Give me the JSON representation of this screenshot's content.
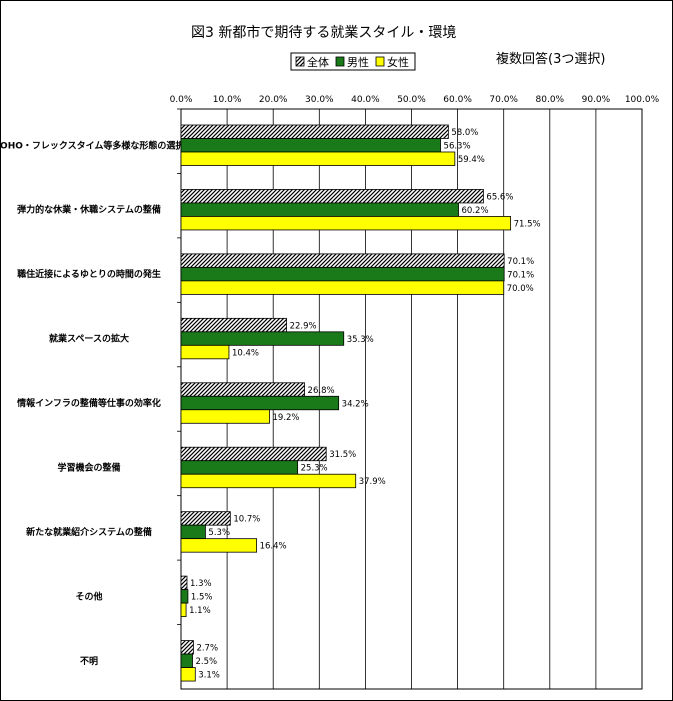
{
  "chart_data": {
    "type": "bar",
    "orientation": "horizontal",
    "title": "図3 新都市で期待する就業スタイル・環境",
    "note": "複数回答(3つ選択)",
    "xlim": [
      0,
      100
    ],
    "x_ticks": [
      "0.0%",
      "10.0%",
      "20.0%",
      "30.0%",
      "40.0%",
      "50.0%",
      "60.0%",
      "70.0%",
      "80.0%",
      "90.0%",
      "100.0%"
    ],
    "legend_position": "top-center",
    "grid": true,
    "categories": [
      "SOHO・フレックスタイム等多様な形態の選択",
      "弾力的な休業・休職システムの整備",
      "職住近接によるゆとりの時間の発生",
      "就業スペースの拡大",
      "情報インフラの整備等仕事の効率化",
      "学習機会の整備",
      "新たな就業紹介システムの整備",
      "その他",
      "不明"
    ],
    "series": [
      {
        "name": "全体",
        "style": "hatched",
        "color": "#ffffff",
        "values": [
          58.0,
          65.6,
          70.1,
          22.9,
          26.8,
          31.5,
          10.7,
          1.3,
          2.7
        ],
        "labels": [
          "58.0%",
          "65.6%",
          "70.1%",
          "22.9%",
          "26.8%",
          "31.5%",
          "10.7%",
          "1.3%",
          "2.7%"
        ]
      },
      {
        "name": "男性",
        "style": "solid",
        "color": "#1a7a1a",
        "values": [
          56.3,
          60.2,
          70.1,
          35.3,
          34.2,
          25.3,
          5.3,
          1.5,
          2.5
        ],
        "labels": [
          "56.3%",
          "60.2%",
          "70.1%",
          "35.3%",
          "34.2%",
          "25.3%",
          "5.3%",
          "1.5%",
          "2.5%"
        ]
      },
      {
        "name": "女性",
        "style": "solid",
        "color": "#ffff00",
        "values": [
          59.4,
          71.5,
          70.0,
          10.4,
          19.2,
          37.9,
          16.4,
          1.1,
          3.1
        ],
        "labels": [
          "59.4%",
          "71.5%",
          "70.0%",
          "10.4%",
          "19.2%",
          "37.9%",
          "16.4%",
          "1.1%",
          "3.1%"
        ]
      }
    ]
  }
}
